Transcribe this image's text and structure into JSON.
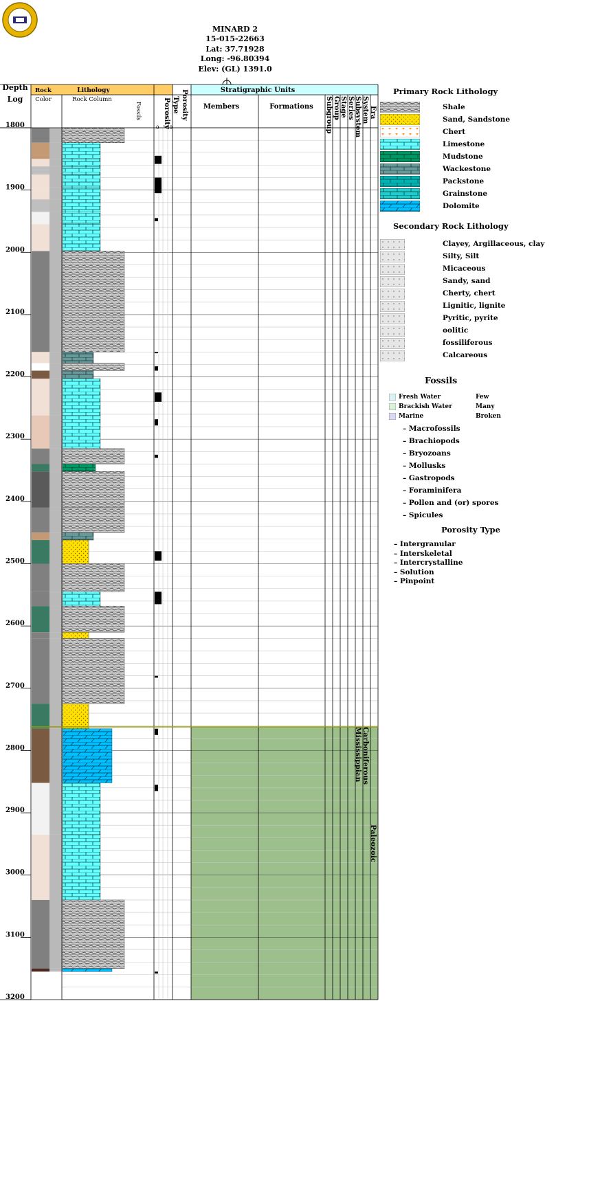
{
  "header": {
    "well_name": "MINARD 2",
    "api": "15-015-22663",
    "lat": "Lat: 37.71928",
    "long": "Long: -96.80394",
    "elev": "Elev: (GL) 1391.0"
  },
  "log_headers": {
    "depth": "Depth",
    "log": "Log",
    "rock": "Rock",
    "color": "Color",
    "lithology": "Lithology",
    "rock_column": "Rock Column",
    "fossils": "Fossils",
    "porosity": "Porosity",
    "type": "Type",
    "porosity_type": "Porosity",
    "scale_min": "0",
    "scale_max": "30",
    "strat_units": "Stratigraphic Units",
    "members": "Members",
    "formations": "Formations",
    "subgroup": "Subgroup",
    "group": "Group",
    "stage": "Stage",
    "series": "Series",
    "subsystem": "Subsystem",
    "system": "System",
    "era": "Era"
  },
  "depth_labels": [
    "1800",
    "1900",
    "2000",
    "2100",
    "2200",
    "2300",
    "2400",
    "2500",
    "2600",
    "2700",
    "2800",
    "2900",
    "3000",
    "3100",
    "3200"
  ],
  "strat": {
    "subsystem": "Mississippian",
    "system": "Carboniferous",
    "era": "Paleozoic",
    "fill_color": "#9dbf8c"
  },
  "lithology_intervals": [
    {
      "top": 1800,
      "base": 1824,
      "lith": "shale",
      "color": "#808080"
    },
    {
      "top": 1824,
      "base": 1850,
      "lith": "limestone",
      "color": "#c49a75"
    },
    {
      "top": 1850,
      "base": 1862,
      "lith": "limestone",
      "color": "#f0e0d6"
    },
    {
      "top": 1862,
      "base": 1875,
      "lith": "limestone",
      "color": "#bfbfbf"
    },
    {
      "top": 1875,
      "base": 1895,
      "lith": "limestone",
      "color": "#f0e0d6"
    },
    {
      "top": 1895,
      "base": 1915,
      "lith": "limestone",
      "color": "#f0e0d6"
    },
    {
      "top": 1915,
      "base": 1935,
      "lith": "limestone",
      "color": "#bfbfbf"
    },
    {
      "top": 1935,
      "base": 1955,
      "lith": "limestone",
      "color": "#f2f2f2"
    },
    {
      "top": 1955,
      "base": 1998,
      "lith": "limestone",
      "color": "#f0e0d6"
    },
    {
      "top": 1998,
      "base": 2160,
      "lith": "shale",
      "color": "#808080"
    },
    {
      "top": 2160,
      "base": 2178,
      "lith": "wackestone",
      "color": "#f0e0d6"
    },
    {
      "top": 2178,
      "base": 2190,
      "lith": "shale",
      "color": "#ffffff"
    },
    {
      "top": 2190,
      "base": 2203,
      "lith": "wackestone",
      "color": "#7a5a40"
    },
    {
      "top": 2203,
      "base": 2262,
      "lith": "limestone",
      "color": "#f0e0d6"
    },
    {
      "top": 2262,
      "base": 2315,
      "lith": "limestone",
      "color": "#e8c9b8"
    },
    {
      "top": 2315,
      "base": 2340,
      "lith": "shale",
      "color": "#808080"
    },
    {
      "top": 2340,
      "base": 2352,
      "lith": "mudstone",
      "color": "#3a7a62"
    },
    {
      "top": 2352,
      "base": 2410,
      "lith": "shale",
      "color": "#5a5a5a"
    },
    {
      "top": 2410,
      "base": 2450,
      "lith": "shale",
      "color": "#808080"
    },
    {
      "top": 2450,
      "base": 2462,
      "lith": "wackestone",
      "color": "#c49a75"
    },
    {
      "top": 2462,
      "base": 2500,
      "lith": "sandstone",
      "color": "#3a7a62"
    },
    {
      "top": 2500,
      "base": 2545,
      "lith": "shale",
      "color": "#808080"
    },
    {
      "top": 2545,
      "base": 2568,
      "lith": "limestone",
      "color": "#808080"
    },
    {
      "top": 2568,
      "base": 2610,
      "lith": "shale",
      "color": "#3a7a62"
    },
    {
      "top": 2610,
      "base": 2620,
      "lith": "sandstone",
      "color": "#808080"
    },
    {
      "top": 2620,
      "base": 2725,
      "lith": "shale",
      "color": "#808080"
    },
    {
      "top": 2725,
      "base": 2765,
      "lith": "sandstone",
      "color": "#3a7a62"
    },
    {
      "top": 2765,
      "base": 2852,
      "lith": "dolomite",
      "color": "#7a5a40"
    },
    {
      "top": 2852,
      "base": 2935,
      "lith": "limestone",
      "color": "#f2f2f2"
    },
    {
      "top": 2935,
      "base": 3040,
      "lith": "limestone",
      "color": "#f0e0d6"
    },
    {
      "top": 3040,
      "base": 3150,
      "lith": "shale",
      "color": "#808080"
    },
    {
      "top": 3150,
      "base": 3155,
      "lith": "dolomite",
      "color": "#4a2a20"
    }
  ],
  "legend": {
    "primary_title": "Primary Rock Lithology",
    "primary": [
      {
        "label": "Shale",
        "pattern": "shale"
      },
      {
        "label": "Sand, Sandstone",
        "pattern": "sandstone"
      },
      {
        "label": "Chert",
        "pattern": "chert"
      },
      {
        "label": "Limestone",
        "pattern": "limestone"
      },
      {
        "label": "Mudstone",
        "pattern": "mudstone"
      },
      {
        "label": "Wackestone",
        "pattern": "wackestone"
      },
      {
        "label": "Packstone",
        "pattern": "packstone"
      },
      {
        "label": "Grainstone",
        "pattern": "grainstone"
      },
      {
        "label": "Dolomite",
        "pattern": "dolomite"
      }
    ],
    "secondary_title": "Secondary Rock Lithology",
    "secondary": [
      "Clayey, Argillaceous, clay",
      "Silty, Silt",
      "Micaceous",
      "Sandy, sand",
      "Cherty, chert",
      "Lignitic, lignite",
      "Pyritic, pyrite",
      "oolitic",
      "fossiliferous",
      "Calcareous"
    ],
    "fossils_title": "Fossils",
    "water": [
      "Fresh Water",
      "Brackish Water",
      "Marine"
    ],
    "water_colors": [
      "#d9f2f2",
      "#d9f2d9",
      "#d9d9f2"
    ],
    "abundance": [
      "Few",
      "Many",
      "Broken"
    ],
    "fossils": [
      "– Macrofossils",
      "– Brachiopods",
      "– Bryozoans",
      "– Mollusks",
      "– Gastropods",
      "– Foraminifera",
      "– Pollen and (or) spores",
      "– Spicules"
    ],
    "porosity_title": "Porosity Type",
    "porosity": [
      "– Intergranular",
      "– Interskeletal",
      "– Intercrystalline",
      "– Solution",
      "– Pinpoint"
    ]
  },
  "colors": {
    "header_orange": "#ffcc66",
    "header_cyan": "#ccffff",
    "limestone": "#66ffff",
    "dolomite": "#00bfff",
    "mudstone": "#009966",
    "wackestone": "#669999",
    "sand": "#ffe000",
    "porosity_blue": "#0000ff"
  }
}
